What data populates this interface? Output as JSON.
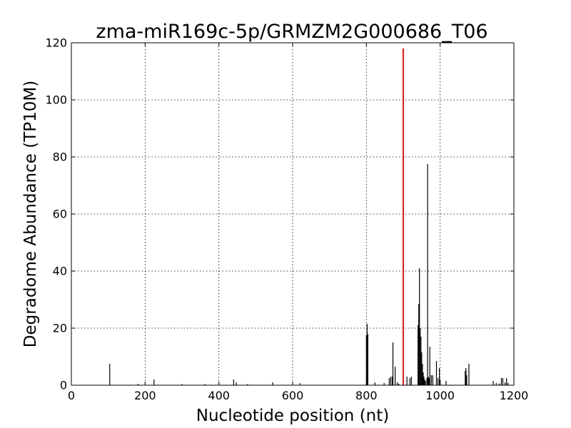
{
  "chart_data": {
    "type": "bar",
    "title": "zma-miR169c-5p/GRMZM2G000686_T06",
    "xlabel": "Nucleotide position (nt)",
    "ylabel": "Degradome Abundance (TP10M)",
    "xlim": [
      0,
      1200
    ],
    "ylim": [
      0,
      120
    ],
    "xticks": [
      0,
      200,
      400,
      600,
      800,
      1000,
      1200
    ],
    "yticks": [
      0,
      20,
      40,
      60,
      80,
      100,
      120
    ],
    "grid": true,
    "colors": {
      "signal": "#000000",
      "target": "#d62728"
    },
    "series": [
      {
        "points": [
          [
            104,
            7.5
          ],
          [
            181,
            0.5
          ],
          [
            224,
            2.0
          ],
          [
            300,
            0.4
          ],
          [
            362,
            0.4
          ],
          [
            440,
            2.0
          ],
          [
            447,
            1.0
          ],
          [
            478,
            0.4
          ],
          [
            546,
            1.0
          ],
          [
            620,
            0.7
          ],
          [
            800,
            17.5
          ],
          [
            802,
            21.5
          ],
          [
            804,
            18.0
          ],
          [
            823,
            1.0
          ],
          [
            848,
            0.8
          ],
          [
            862,
            2.5
          ],
          [
            866,
            3.0
          ],
          [
            870,
            3.0
          ],
          [
            872,
            15.0
          ],
          [
            878,
            6.5
          ],
          [
            884,
            1.0
          ],
          [
            888,
            0.5
          ],
          [
            910,
            3.0
          ],
          [
            918,
            2.5
          ],
          [
            922,
            3.0
          ],
          [
            940,
            21.0
          ],
          [
            942,
            28.5
          ],
          [
            944,
            41.0
          ],
          [
            946,
            20.0
          ],
          [
            948,
            17.0
          ],
          [
            950,
            11.5
          ],
          [
            952,
            7.5
          ],
          [
            954,
            4.5
          ],
          [
            956,
            3.0
          ],
          [
            958,
            2.0
          ],
          [
            960,
            1.5
          ],
          [
            964,
            2.5
          ],
          [
            966,
            77.5
          ],
          [
            968,
            3.0
          ],
          [
            970,
            2.5
          ],
          [
            972,
            13.5
          ],
          [
            976,
            3.5
          ],
          [
            980,
            3.5
          ],
          [
            990,
            8.5
          ],
          [
            994,
            2.5
          ],
          [
            998,
            6.0
          ],
          [
            1000,
            2.0
          ],
          [
            1016,
            1.5
          ],
          [
            1068,
            5.0
          ],
          [
            1070,
            6.0
          ],
          [
            1072,
            3.5
          ],
          [
            1078,
            7.5
          ],
          [
            1144,
            1.5
          ],
          [
            1152,
            0.8
          ],
          [
            1160,
            0.6
          ],
          [
            1166,
            2.5
          ],
          [
            1170,
            2.5
          ],
          [
            1176,
            1.0
          ],
          [
            1180,
            2.5
          ],
          [
            1184,
            0.8
          ]
        ]
      },
      {
        "points": [
          [
            900,
            118.0
          ]
        ]
      }
    ]
  }
}
